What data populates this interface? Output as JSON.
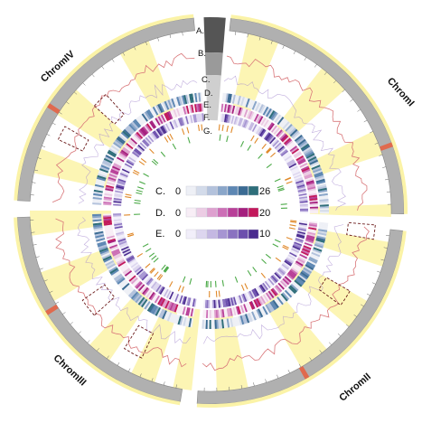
{
  "chromosomes": [
    {
      "name": "ChromI"
    },
    {
      "name": "ChromII"
    },
    {
      "name": "ChromIII"
    },
    {
      "name": "ChromIV"
    }
  ],
  "tracks": [
    {
      "label": "A."
    },
    {
      "label": "B."
    },
    {
      "label": "C."
    },
    {
      "label": "D."
    },
    {
      "label": "E."
    },
    {
      "label": "F."
    },
    {
      "label": "G."
    }
  ],
  "legend": [
    {
      "label": "C.",
      "min": "0",
      "max": "26",
      "colors": [
        "#eef0f6",
        "#d3dbea",
        "#b3c2dc",
        "#8aa6c9",
        "#5d87b3",
        "#3b6b93",
        "#2e6e7a"
      ]
    },
    {
      "label": "D.",
      "min": "0",
      "max": "20",
      "colors": [
        "#f8eef6",
        "#eccce4",
        "#dea0cf",
        "#cc6fb6",
        "#b83f98",
        "#a51f7e",
        "#c2185b"
      ]
    },
    {
      "label": "E.",
      "min": "0",
      "max": "10",
      "colors": [
        "#f2effa",
        "#ddd6ef",
        "#c4b8e2",
        "#a695d2",
        "#8a72c0",
        "#6c4fad",
        "#4a2b8f"
      ]
    }
  ],
  "colors": {
    "ideogram": "#b0b0b0",
    "ideogram_dark": "#7a7a7a",
    "highlight": "#fbf3a7",
    "line": "#d9777a",
    "marker": "#e06a4e",
    "f_track": "#e0892a",
    "g_track": "#4caa48"
  }
}
